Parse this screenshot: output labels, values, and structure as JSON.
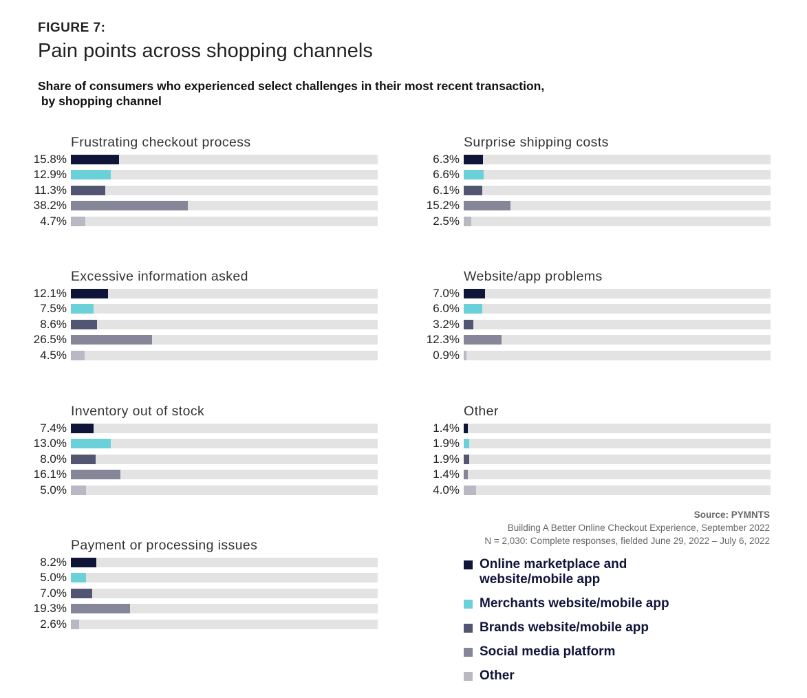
{
  "figure_label": "FIGURE 7:",
  "title": "Pain points across shopping channels",
  "subtitle_line1": "Share of consumers who experienced select challenges in their most recent transaction,",
  "subtitle_line2": " by shopping channel",
  "source": {
    "label": "Source: PYMNTS",
    "line1": "Building A Better Online Checkout Experience, September 2022",
    "line2": "N = 2,030: Complete responses, fielded June 29, 2022 – July 6, 2022"
  },
  "chart_data": {
    "type": "bar",
    "orientation": "horizontal",
    "xlim": [
      0,
      100
    ],
    "unit": "%",
    "series_names": [
      "Online marketplace and website/mobile app",
      "Merchants website/mobile app",
      "Brands website/mobile app",
      "Social media platform",
      "Other"
    ],
    "colors": [
      "#0f1538",
      "#6bd1d9",
      "#525673",
      "#858799",
      "#b9b9c6"
    ],
    "track_color": "#e3e3e3",
    "panels": [
      {
        "title": "Frustrating checkout process",
        "values": [
          15.8,
          12.9,
          11.3,
          38.2,
          4.7
        ],
        "labels": [
          "15.8%",
          "12.9%",
          "11.3%",
          "38.2%",
          "4.7%"
        ]
      },
      {
        "title": "Surprise shipping costs",
        "values": [
          6.3,
          6.6,
          6.1,
          15.2,
          2.5
        ],
        "labels": [
          "6.3%",
          "6.6%",
          "6.1%",
          "15.2%",
          "2.5%"
        ]
      },
      {
        "title": "Excessive information asked",
        "values": [
          12.1,
          7.5,
          8.6,
          26.5,
          4.5
        ],
        "labels": [
          "12.1%",
          "7.5%",
          "8.6%",
          "26.5%",
          "4.5%"
        ]
      },
      {
        "title": "Website/app problems",
        "values": [
          7.0,
          6.0,
          3.2,
          12.3,
          0.9
        ],
        "labels": [
          "7.0%",
          "6.0%",
          "3.2%",
          "12.3%",
          "0.9%"
        ]
      },
      {
        "title": "Inventory out of stock",
        "values": [
          7.4,
          13.0,
          8.0,
          16.1,
          5.0
        ],
        "labels": [
          "7.4%",
          "13.0%",
          "8.0%",
          "16.1%",
          "5.0%"
        ]
      },
      {
        "title": "Other",
        "values": [
          1.4,
          1.9,
          1.9,
          1.4,
          4.0
        ],
        "labels": [
          "1.4%",
          "1.9%",
          "1.9%",
          "1.4%",
          "4.0%"
        ]
      },
      {
        "title": "Payment or processing issues",
        "values": [
          8.2,
          5.0,
          7.0,
          19.3,
          2.6
        ],
        "labels": [
          "8.2%",
          "5.0%",
          "7.0%",
          "19.3%",
          "2.6%"
        ]
      }
    ]
  },
  "legend": [
    {
      "line1": "Online marketplace and",
      "line2": "website/mobile app"
    },
    {
      "line1": "Merchants website/mobile app"
    },
    {
      "line1": "Brands website/mobile app"
    },
    {
      "line1": "Social media platform"
    },
    {
      "line1": "Other"
    }
  ]
}
